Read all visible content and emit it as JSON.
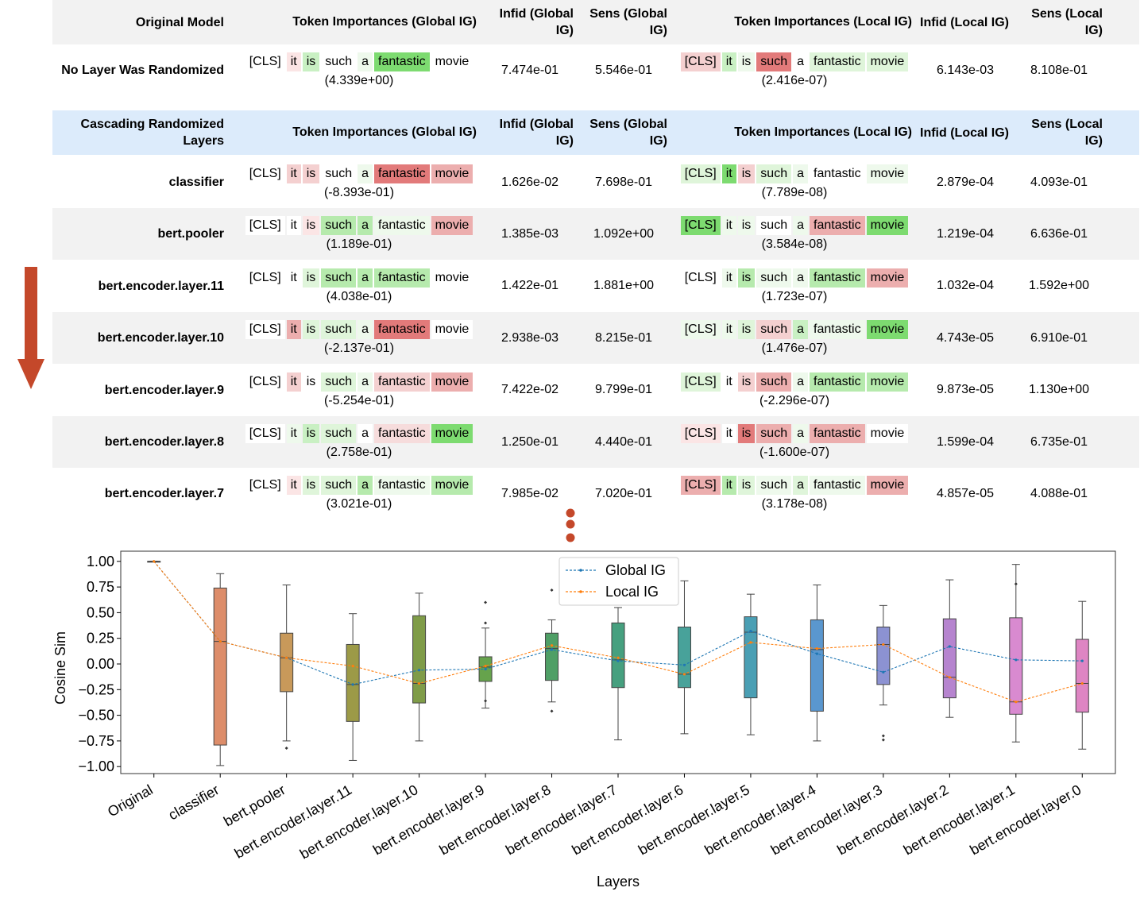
{
  "original_section": {
    "header": {
      "name": "Original Model",
      "tok_global": "Token Importances (Global IG)",
      "infid_global": "Infid (Global IG)",
      "sens_global": "Sens (Global IG)",
      "tok_local": "Token Importances (Local IG)",
      "infid_local": "Infid (Local IG)",
      "sens_local": "Sens (Local IG)"
    },
    "row": {
      "name": "No Layer Was Randomized",
      "global_score": "(4.339e+00)",
      "local_score": "(2.416e-07)",
      "infid_global": "7.474e-01",
      "sens_global": "5.546e-01",
      "infid_local": "6.143e-03",
      "sens_local": "8.108e-01"
    }
  },
  "cascading_section": {
    "header": {
      "name": "Cascading Randomized Layers",
      "tok_global": "Token Importances (Global IG)",
      "infid_global": "Infid (Global IG)",
      "sens_global": "Sens (Global IG)",
      "tok_local": "Token Importances (Local IG)",
      "infid_local": "Infid (Local IG)",
      "sens_local": "Sens (Local IG)"
    },
    "rows": [
      {
        "name": "classifier",
        "global_score": "(-8.393e-01)",
        "local_score": "(7.789e-08)",
        "infid_global": "1.626e-02",
        "sens_global": "7.698e-01",
        "infid_local": "2.879e-04",
        "sens_local": "4.093e-01"
      },
      {
        "name": "bert.pooler",
        "global_score": "(1.189e-01)",
        "local_score": "(3.584e-08)",
        "infid_global": "1.385e-03",
        "sens_global": "1.092e+00",
        "infid_local": "1.219e-04",
        "sens_local": "6.636e-01"
      },
      {
        "name": "bert.encoder.layer.11",
        "global_score": "(4.038e-01)",
        "local_score": "(1.723e-07)",
        "infid_global": "1.422e-01",
        "sens_global": "1.881e+00",
        "infid_local": "1.032e-04",
        "sens_local": "1.592e+00"
      },
      {
        "name": "bert.encoder.layer.10",
        "global_score": "(-2.137e-01)",
        "local_score": "(1.476e-07)",
        "infid_global": "2.938e-03",
        "sens_global": "8.215e-01",
        "infid_local": "4.743e-05",
        "sens_local": "6.910e-01"
      },
      {
        "name": "bert.encoder.layer.9",
        "global_score": "(-5.254e-01)",
        "local_score": "(-2.296e-07)",
        "infid_global": "7.422e-02",
        "sens_global": "9.799e-01",
        "infid_local": "9.873e-05",
        "sens_local": "1.130e+00"
      },
      {
        "name": "bert.encoder.layer.8",
        "global_score": "(2.758e-01)",
        "local_score": "(-1.600e-07)",
        "infid_global": "1.250e-01",
        "sens_global": "4.440e-01",
        "infid_local": "1.599e-04",
        "sens_local": "6.735e-01"
      },
      {
        "name": "bert.encoder.layer.7",
        "global_score": "(3.021e-01)",
        "local_score": "(3.178e-08)",
        "infid_global": "7.985e-02",
        "sens_global": "7.020e-01",
        "infid_local": "4.857e-05",
        "sens_local": "4.088e-01"
      }
    ]
  },
  "tokens": [
    "[CLS]",
    "it",
    "is",
    "such",
    "a",
    "fantastic",
    "movie"
  ],
  "token_colors": {
    "orig_global": [
      "#ffffff",
      "#fbe5e5",
      "#c9f0c3",
      "#ffffff",
      "#eef9ec",
      "#7ddb70",
      "#ffffff"
    ],
    "orig_local": [
      "#f4d0d0",
      "#c9f0c3",
      "#eef9ec",
      "#e27a7a",
      "#ffffff",
      "#dff5da",
      "#dff5da"
    ],
    "rows_global": [
      [
        "#ffffff",
        "#f4d0d0",
        "#f4d0d0",
        "#ffffff",
        "#eef9ec",
        "#e27a7a",
        "#ecaeae"
      ],
      [
        "#ffffff",
        "#ffffff",
        "#fbe5e5",
        "#b6eaad",
        "#b6eaad",
        "#eef9ec",
        "#ecaeae"
      ],
      [
        "#ffffff",
        "#ffffff",
        "#dff5da",
        "#b6eaad",
        "#b6eaad",
        "#b6eaad",
        "#ffffff"
      ],
      [
        "#ffffff",
        "#ecaeae",
        "#dff5da",
        "#dff5da",
        "#eef9ec",
        "#e27a7a",
        "#ffffff"
      ],
      [
        "#ffffff",
        "#f4d0d0",
        "#ffffff",
        "#dff5da",
        "#eef9ec",
        "#f4d0d0",
        "#ecaeae"
      ],
      [
        "#ffffff",
        "#eef9ec",
        "#c9f0c3",
        "#dff5da",
        "#ffffff",
        "#f6dcdc",
        "#7ddb70"
      ],
      [
        "#ffffff",
        "#fbe5e5",
        "#dff5da",
        "#dff5da",
        "#b6eaad",
        "#eef9ec",
        "#b6eaad"
      ]
    ],
    "rows_local": [
      [
        "#dff5da",
        "#7ddb70",
        "#f4d0d0",
        "#dff5da",
        "#eef9ec",
        "#ffffff",
        "#eef9ec"
      ],
      [
        "#7ddb70",
        "#eef9ec",
        "#eef9ec",
        "#ffffff",
        "#eef9ec",
        "#ecaeae",
        "#7ddb70"
      ],
      [
        "#ffffff",
        "#eef9ec",
        "#b6eaad",
        "#eef9ec",
        "#eef9ec",
        "#b6eaad",
        "#ecaeae"
      ],
      [
        "#eef9ec",
        "#eef9ec",
        "#dff5da",
        "#f4d0d0",
        "#c9f0c3",
        "#eef9ec",
        "#7ddb70"
      ],
      [
        "#dff5da",
        "#ffffff",
        "#f4d0d0",
        "#ecaeae",
        "#eef9ec",
        "#b6eaad",
        "#b6eaad"
      ],
      [
        "#fbe5e5",
        "#ffffff",
        "#e27a7a",
        "#ecaeae",
        "#eef9ec",
        "#ecaeae",
        "#ffffff"
      ],
      [
        "#ecaeae",
        "#b6eaad",
        "#dff5da",
        "#eef9ec",
        "#dff5da",
        "#eef9ec",
        "#ecaeae"
      ]
    ]
  },
  "colors": {
    "arrow": "#c4482a",
    "dots": "#c4482a",
    "global_line": "#1f77b4",
    "local_line": "#ff7f0e"
  },
  "chart_data": {
    "type": "box",
    "title": "",
    "xlabel": "Layers",
    "ylabel": "Cosine Sim",
    "ylim": [
      -1.1,
      1.1
    ],
    "yticks": [
      "1.00",
      "0.75",
      "0.50",
      "0.25",
      "0.00",
      "−0.25",
      "−0.50",
      "−0.75",
      "−1.00"
    ],
    "ytick_values": [
      1.0,
      0.75,
      0.5,
      0.25,
      0.0,
      -0.25,
      -0.5,
      -0.75,
      -1.0
    ],
    "categories": [
      "Original",
      "classifier",
      "bert.pooler",
      "bert.encoder.layer.11",
      "bert.encoder.layer.10",
      "bert.encoder.layer.9",
      "bert.encoder.layer.8",
      "bert.encoder.layer.7",
      "bert.encoder.layer.6",
      "bert.encoder.layer.5",
      "bert.encoder.layer.4",
      "bert.encoder.layer.3",
      "bert.encoder.layer.2",
      "bert.encoder.layer.1",
      "bert.encoder.layer.0"
    ],
    "legend": [
      "Global IG",
      "Local IG"
    ],
    "legend_position": "top-center",
    "box_colors": [
      "#e8e8e8",
      "#dd8d6a",
      "#c8995a",
      "#9c9a47",
      "#7f9c48",
      "#66a34c",
      "#4f9f66",
      "#46a07f",
      "#48a29a",
      "#4a9fb4",
      "#5a97cf",
      "#8c92d2",
      "#b684cf",
      "#d98ad0",
      "#de85c3"
    ],
    "boxes": [
      {
        "min": 1.0,
        "q1": 1.0,
        "median": 1.0,
        "q3": 1.0,
        "max": 1.0,
        "outliers": []
      },
      {
        "min": -0.99,
        "q1": -0.79,
        "median": 0.22,
        "q3": 0.74,
        "max": 0.88,
        "outliers": []
      },
      {
        "min": -0.75,
        "q1": -0.27,
        "median": 0.06,
        "q3": 0.3,
        "max": 0.77,
        "outliers": [
          -0.82
        ]
      },
      {
        "min": -0.94,
        "q1": -0.56,
        "median": -0.2,
        "q3": 0.19,
        "max": 0.49,
        "outliers": []
      },
      {
        "min": -0.75,
        "q1": -0.38,
        "median": -0.19,
        "q3": 0.47,
        "max": 0.69,
        "outliers": []
      },
      {
        "min": -0.43,
        "q1": -0.17,
        "median": -0.03,
        "q3": 0.07,
        "max": 0.35,
        "outliers": [
          0.6,
          0.4,
          -0.36
        ]
      },
      {
        "min": -0.37,
        "q1": -0.16,
        "median": 0.15,
        "q3": 0.3,
        "max": 0.43,
        "outliers": [
          0.72,
          -0.46
        ]
      },
      {
        "min": -0.74,
        "q1": -0.23,
        "median": 0.04,
        "q3": 0.4,
        "max": 0.55,
        "outliers": []
      },
      {
        "min": -0.68,
        "q1": -0.23,
        "median": -0.1,
        "q3": 0.36,
        "max": 0.81,
        "outliers": []
      },
      {
        "min": -0.69,
        "q1": -0.33,
        "median": 0.31,
        "q3": 0.46,
        "max": 0.68,
        "outliers": []
      },
      {
        "min": -0.75,
        "q1": -0.46,
        "median": 0.14,
        "q3": 0.43,
        "max": 0.77,
        "outliers": []
      },
      {
        "min": -0.4,
        "q1": -0.2,
        "median": 0.19,
        "q3": 0.36,
        "max": 0.57,
        "outliers": [
          -0.7,
          -0.74
        ]
      },
      {
        "min": -0.52,
        "q1": -0.33,
        "median": -0.13,
        "q3": 0.44,
        "max": 0.82,
        "outliers": []
      },
      {
        "min": -0.76,
        "q1": -0.49,
        "median": -0.37,
        "q3": 0.45,
        "max": 0.97,
        "outliers": [
          0.78
        ]
      },
      {
        "min": -0.83,
        "q1": -0.47,
        "median": -0.19,
        "q3": 0.24,
        "max": 0.61,
        "outliers": []
      }
    ],
    "series": [
      {
        "name": "Global IG",
        "values": [
          1.0,
          0.22,
          0.06,
          -0.2,
          -0.06,
          -0.05,
          0.14,
          0.03,
          -0.01,
          0.32,
          0.1,
          -0.08,
          0.17,
          0.04,
          0.03
        ]
      },
      {
        "name": "Local IG",
        "values": [
          1.0,
          0.22,
          0.06,
          -0.02,
          -0.19,
          -0.02,
          0.18,
          0.06,
          -0.1,
          0.21,
          0.15,
          0.19,
          -0.13,
          -0.37,
          -0.19
        ]
      }
    ]
  }
}
